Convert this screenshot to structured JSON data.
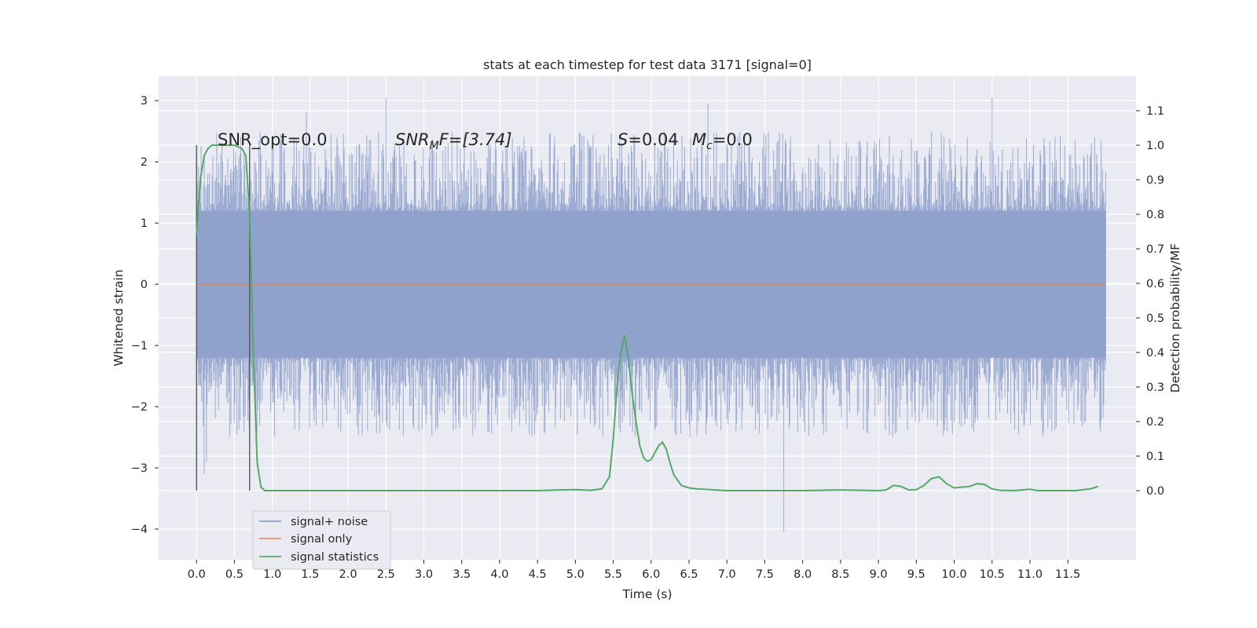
{
  "chart_data": {
    "type": "line",
    "title": "stats at each timestep for test data 3171 [signal=0]",
    "xlabel": "Time (s)",
    "ylabel_left": "Whitened strain",
    "ylabel_right": "Detection probability/MF",
    "xlim": [
      -0.5,
      12.4
    ],
    "ylim_left": [
      -4.5,
      3.4
    ],
    "ylim_right": [
      -0.2,
      1.2
    ],
    "grid": true,
    "background": "#eaeaf2",
    "x_ticks": [
      "0.0",
      "0.5",
      "1.0",
      "1.5",
      "2.0",
      "2.5",
      "3.0",
      "3.5",
      "4.0",
      "4.5",
      "5.0",
      "5.5",
      "6.0",
      "6.5",
      "7.0",
      "7.5",
      "8.0",
      "8.5",
      "9.0",
      "9.5",
      "10.0",
      "10.5",
      "11.0",
      "11.5"
    ],
    "x_tick_values": [
      0.0,
      0.5,
      1.0,
      1.5,
      2.0,
      2.5,
      3.0,
      3.5,
      4.0,
      4.5,
      5.0,
      5.5,
      6.0,
      6.5,
      7.0,
      7.5,
      8.0,
      8.5,
      9.0,
      9.5,
      10.0,
      10.5,
      11.0,
      11.5
    ],
    "y_left_ticks": [
      "3",
      "2",
      "1",
      "0",
      "−1",
      "−2",
      "−3",
      "−4"
    ],
    "y_left_tick_values": [
      3,
      2,
      1,
      0,
      -1,
      -2,
      -3,
      -4
    ],
    "y_right_ticks": [
      "1.1",
      "1.0",
      "0.9",
      "0.8",
      "0.7",
      "0.6",
      "0.5",
      "0.4",
      "0.3",
      "0.2",
      "0.1",
      "0.0"
    ],
    "y_right_tick_values": [
      1.1,
      1.0,
      0.9,
      0.8,
      0.7,
      0.6,
      0.5,
      0.4,
      0.3,
      0.2,
      0.1,
      0.0
    ],
    "legend": {
      "position": "lower left",
      "entries": [
        {
          "label": "signal+ noise",
          "color": "#8da0cb"
        },
        {
          "label": "signal only",
          "color": "#dd8452"
        },
        {
          "label": "signal statistics",
          "color": "#55a868"
        }
      ]
    },
    "annotations": {
      "snr_opt": "SNR_opt=0.0",
      "snr_mf_main": "SNR",
      "snr_mf_sub": "M",
      "snr_mf_rest": "F=[3.74]",
      "s_main": "S",
      "s_rest": "=0.04",
      "mc_main": "M",
      "mc_sub": "c",
      "mc_rest": "=0.0"
    },
    "vertical_lines_x": [
      0.0,
      0.7
    ],
    "series": [
      {
        "name": "signal+ noise",
        "color": "#8da0cb",
        "x_range": [
          0.0,
          12.0
        ],
        "envelope_band": [
          -1.2,
          1.2
        ],
        "notable_extremes": [
          {
            "x": 0.1,
            "y": -3.1
          },
          {
            "x": 0.13,
            "y": -2.9
          },
          {
            "x": 1.45,
            "y": 2.8
          },
          {
            "x": 2.5,
            "y": 3.05
          },
          {
            "x": 6.75,
            "y": 2.95
          },
          {
            "x": 7.75,
            "y": -4.05
          },
          {
            "x": 10.5,
            "y": 3.05
          }
        ]
      },
      {
        "name": "signal only",
        "color": "#dd8452",
        "x": [
          0.0,
          12.0
        ],
        "y": [
          0.0,
          0.0
        ]
      },
      {
        "name": "signal statistics",
        "color": "#55a868",
        "axis": "right",
        "x": [
          0.0,
          0.05,
          0.1,
          0.15,
          0.2,
          0.3,
          0.4,
          0.5,
          0.6,
          0.65,
          0.7,
          0.75,
          0.8,
          0.85,
          0.9,
          1.0,
          2.0,
          3.0,
          4.0,
          4.5,
          4.8,
          5.0,
          5.2,
          5.35,
          5.45,
          5.5,
          5.55,
          5.6,
          5.65,
          5.7,
          5.75,
          5.8,
          5.85,
          5.9,
          5.95,
          6.0,
          6.05,
          6.1,
          6.15,
          6.2,
          6.25,
          6.3,
          6.4,
          6.5,
          6.6,
          7.0,
          7.5,
          8.0,
          8.5,
          9.0,
          9.1,
          9.2,
          9.3,
          9.4,
          9.5,
          9.6,
          9.7,
          9.8,
          9.9,
          10.0,
          10.2,
          10.3,
          10.4,
          10.5,
          10.6,
          10.8,
          11.0,
          11.1,
          11.3,
          11.6,
          11.8,
          11.9
        ],
        "y": [
          0.74,
          0.9,
          0.97,
          0.99,
          1.0,
          1.0,
          1.0,
          1.0,
          0.99,
          0.97,
          0.8,
          0.4,
          0.08,
          0.01,
          0.0,
          0.0,
          0.0,
          0.0,
          0.0,
          0.0,
          0.002,
          0.003,
          0.001,
          0.005,
          0.04,
          0.15,
          0.3,
          0.4,
          0.45,
          0.38,
          0.28,
          0.2,
          0.13,
          0.095,
          0.085,
          0.09,
          0.11,
          0.13,
          0.14,
          0.12,
          0.08,
          0.045,
          0.015,
          0.008,
          0.005,
          0.0,
          0.0,
          0.0,
          0.002,
          0.0,
          0.002,
          0.015,
          0.012,
          0.002,
          0.003,
          0.015,
          0.035,
          0.04,
          0.02,
          0.008,
          0.012,
          0.02,
          0.018,
          0.005,
          0.001,
          0.0,
          0.004,
          0.0,
          0.0,
          0.0,
          0.005,
          0.012
        ]
      }
    ]
  }
}
